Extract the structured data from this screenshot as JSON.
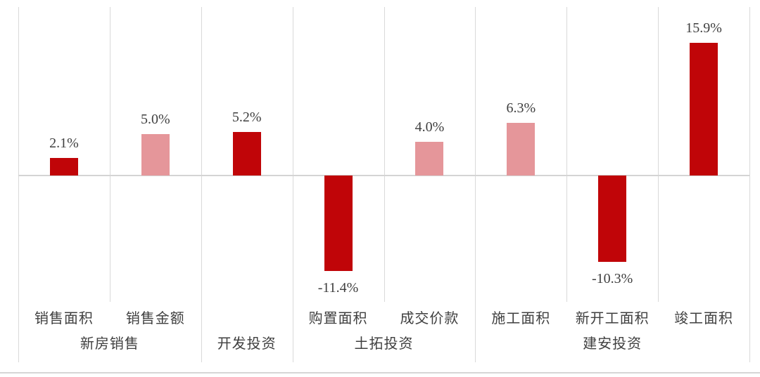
{
  "colors": {
    "bar_dark_red": "#c00508",
    "bar_pink": "#e5969a",
    "grid_line": "#d9d9d9",
    "zero_line": "#d4d4d4",
    "label_text": "#3f3f3f",
    "bottom_border": "#d6d6d6",
    "background": "#ffffff"
  },
  "chart_data": {
    "type": "bar",
    "title": "",
    "legend": "none",
    "ylim": [
      -15,
      20.2
    ],
    "grid": "vertical category separators only, no y-axis ticks or labels",
    "zero_line": true,
    "bars": [
      {
        "category": "销售面积",
        "group": "新房销售",
        "value": 2.1,
        "label": "2.1%",
        "color": "dark_red"
      },
      {
        "category": "销售金额",
        "group": "新房销售",
        "value": 5.0,
        "label": "5.0%",
        "color": "pink"
      },
      {
        "category": "开发投资",
        "group": "开发投资",
        "value": 5.2,
        "label": "5.2%",
        "color": "dark_red"
      },
      {
        "category": "购置面积",
        "group": "土拓投资",
        "value": -11.4,
        "label": "-11.4%",
        "color": "dark_red"
      },
      {
        "category": "成交价款",
        "group": "土拓投资",
        "value": 4.0,
        "label": "4.0%",
        "color": "pink"
      },
      {
        "category": "施工面积",
        "group": "建安投资",
        "value": 6.3,
        "label": "6.3%",
        "color": "pink"
      },
      {
        "category": "新开工面积",
        "group": "建安投资",
        "value": -10.3,
        "label": "-10.3%",
        "color": "dark_red"
      },
      {
        "category": "竣工面积",
        "group": "建安投资",
        "value": 15.9,
        "label": "15.9%",
        "color": "dark_red"
      }
    ],
    "groups": [
      {
        "label": "新房销售",
        "start": 0,
        "end": 1
      },
      {
        "label": "开发投资",
        "start": 2,
        "end": 2
      },
      {
        "label": "土拓投资",
        "start": 3,
        "end": 4
      },
      {
        "label": "建安投资",
        "start": 5,
        "end": 7
      }
    ]
  }
}
